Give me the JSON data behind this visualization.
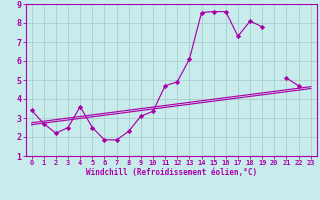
{
  "bg_color": "#c8ecec",
  "line_color": "#aa00aa",
  "grid_color": "#aacccc",
  "spine_color": "#aa00aa",
  "xlabel": "Windchill (Refroidissement éolien,°C)",
  "xlim": [
    -0.5,
    23.5
  ],
  "ylim": [
    1,
    9
  ],
  "xticks": [
    0,
    1,
    2,
    3,
    4,
    5,
    6,
    7,
    8,
    9,
    10,
    11,
    12,
    13,
    14,
    15,
    16,
    17,
    18,
    19,
    20,
    21,
    22,
    23
  ],
  "yticks": [
    1,
    2,
    3,
    4,
    5,
    6,
    7,
    8,
    9
  ],
  "series_x": [
    0,
    1,
    2,
    3,
    4,
    5,
    6,
    7,
    8,
    9,
    10,
    11,
    12,
    13,
    14,
    15,
    16,
    17,
    18,
    19,
    21,
    22
  ],
  "series_y": [
    3.4,
    2.7,
    2.2,
    2.5,
    3.6,
    2.5,
    1.85,
    1.85,
    2.3,
    3.1,
    3.35,
    4.7,
    4.9,
    6.1,
    8.55,
    8.6,
    8.6,
    7.3,
    8.1,
    7.8,
    5.1,
    4.7
  ],
  "trend1_x": [
    0,
    23
  ],
  "trend1_y": [
    2.65,
    4.55
  ],
  "trend2_x": [
    0,
    23
  ],
  "trend2_y": [
    2.75,
    4.65
  ],
  "marker": "D",
  "markersize": 2.2,
  "linewidth": 0.85
}
